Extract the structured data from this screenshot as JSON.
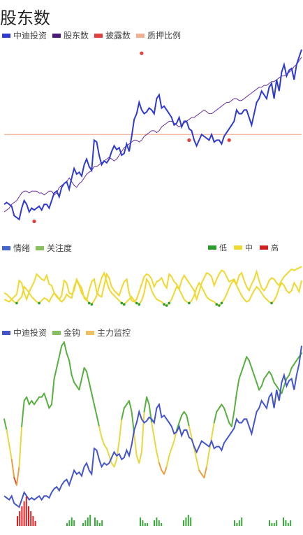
{
  "page_title": "股东数",
  "chart_data": [
    {
      "type": "line",
      "legend": [
        "中迪投资",
        "股东数",
        "披露数",
        "质押比例"
      ],
      "colors": {
        "price": "#2f3ad0",
        "holders": "#6a2fa0",
        "disclose": "#e04040",
        "pledge": "#f0b090"
      },
      "x_count": 120,
      "series": [
        {
          "name": "中迪投资",
          "values": [
            24,
            25,
            24,
            23,
            18,
            17,
            16,
            22,
            26,
            24,
            20,
            22,
            21,
            22,
            23,
            21,
            24,
            24,
            22,
            26,
            30,
            31,
            28,
            33,
            35,
            36,
            32,
            38,
            43,
            40,
            41,
            39,
            45,
            48,
            44,
            42,
            58,
            57,
            50,
            45,
            47,
            46,
            48,
            52,
            55,
            53,
            54,
            50,
            51,
            56,
            52,
            60,
            69,
            72,
            78,
            74,
            72,
            73,
            75,
            74,
            72,
            80,
            82,
            75,
            76,
            74,
            72,
            70,
            66,
            67,
            70,
            65,
            68,
            68,
            64,
            63,
            58,
            55,
            58,
            61,
            60,
            59,
            58,
            61,
            57,
            58,
            58,
            56,
            60,
            62,
            64,
            66,
            68,
            74,
            72,
            72,
            74,
            74,
            70,
            66,
            72,
            78,
            80,
            84,
            82,
            80,
            86,
            88,
            80,
            90,
            84,
            94,
            98,
            92,
            95,
            96,
            90,
            98,
            102,
            106
          ]
        },
        {
          "name": "股东数",
          "values": [
            20,
            21,
            22,
            24,
            25,
            26,
            28,
            30,
            31,
            31,
            30,
            31,
            31,
            31,
            30,
            30,
            29,
            30,
            31,
            31,
            29,
            30,
            33,
            34,
            35,
            36,
            38,
            36,
            34,
            33,
            35,
            36,
            38,
            40,
            41,
            42,
            44,
            44,
            45,
            46,
            47,
            48,
            49,
            48,
            47,
            48,
            50,
            52,
            54,
            55,
            56,
            57,
            58,
            58,
            57,
            58,
            60,
            61,
            62,
            63,
            63,
            62,
            63,
            65,
            66,
            67,
            68,
            68,
            67,
            66,
            65,
            66,
            67,
            68,
            69,
            70,
            70,
            71,
            72,
            73,
            74,
            73,
            72,
            72,
            73,
            74,
            75,
            76,
            77,
            78,
            78,
            79,
            80,
            80,
            79,
            79,
            80,
            81,
            82,
            83,
            84,
            85,
            86,
            86,
            87,
            87,
            88,
            89,
            89,
            90,
            91,
            92,
            92,
            93,
            94,
            95,
            97,
            98,
            100,
            102
          ]
        },
        {
          "name": "质押比例",
          "values": [
            61,
            61,
            61,
            61,
            61,
            61,
            61,
            61,
            61,
            61,
            61,
            61,
            61,
            61,
            61,
            61,
            61,
            61,
            61,
            61,
            61,
            61,
            61,
            61,
            61,
            61,
            61,
            61,
            61,
            61,
            61,
            61,
            61,
            61,
            61,
            61,
            61,
            61,
            61,
            61,
            61,
            61,
            61,
            61,
            61,
            61,
            61,
            61,
            61,
            61,
            61,
            61,
            61,
            61,
            61,
            61,
            61,
            61,
            61,
            61,
            61,
            61,
            61,
            61,
            61,
            61,
            61,
            61,
            61,
            61,
            61,
            61,
            61,
            61,
            61,
            61,
            61,
            61,
            61,
            61,
            61,
            61,
            61,
            61,
            61,
            61,
            61,
            61,
            61,
            61,
            61,
            61,
            61,
            61,
            61,
            61,
            61,
            61,
            61,
            61,
            61,
            61,
            61,
            61,
            61,
            61,
            61,
            61,
            61,
            61,
            61,
            61,
            61,
            61,
            61,
            61,
            61,
            61,
            61,
            61
          ]
        }
      ],
      "disclose_points": [
        {
          "x": 12,
          "y": 15
        },
        {
          "x": 55,
          "y": 104
        },
        {
          "x": 74,
          "y": 58
        },
        {
          "x": 90,
          "y": 58
        }
      ],
      "ylim": [
        10,
        110
      ]
    },
    {
      "type": "line",
      "legend": [
        "情绪",
        "关注度"
      ],
      "level_legend": [
        "低",
        "中",
        "高"
      ],
      "colors": {
        "sentiment": "#4466cc",
        "attention": "#88c060",
        "low": "#2a9d2a",
        "mid": "#f0d830",
        "high": "#d02020"
      },
      "x_count": 120,
      "series": [
        {
          "name": "情绪",
          "values": [
            30,
            28,
            26,
            30,
            34,
            38,
            60,
            56,
            40,
            30,
            42,
            50,
            58,
            70,
            66,
            62,
            60,
            68,
            54,
            52,
            40,
            34,
            30,
            36,
            60,
            56,
            40,
            38,
            44,
            62,
            54,
            48,
            32,
            28,
            44,
            58,
            62,
            42,
            36,
            34,
            52,
            70,
            64,
            50,
            44,
            40,
            36,
            48,
            58,
            62,
            40,
            28,
            26,
            30,
            42,
            54,
            66,
            70,
            68,
            62,
            50,
            58,
            60,
            64,
            54,
            48,
            70,
            66,
            58,
            54,
            46,
            60,
            68,
            62,
            56,
            50,
            44,
            30,
            42,
            56,
            64,
            72,
            70,
            66,
            52,
            62,
            70,
            76,
            74,
            66,
            58,
            60,
            62,
            54,
            68,
            72,
            60,
            50,
            44,
            54,
            62,
            74,
            60,
            48,
            44,
            50,
            60,
            64,
            62,
            56,
            52,
            60,
            66,
            70,
            74,
            78,
            76,
            78,
            80,
            82
          ]
        },
        {
          "name": "关注度",
          "values": [
            40,
            38,
            34,
            30,
            26,
            24,
            30,
            34,
            50,
            46,
            40,
            34,
            30,
            26,
            24,
            28,
            32,
            30,
            26,
            34,
            40,
            36,
            30,
            26,
            30,
            38,
            34,
            32,
            50,
            60,
            52,
            40,
            34,
            30,
            24,
            22,
            28,
            36,
            50,
            64,
            72,
            58,
            46,
            40,
            36,
            32,
            28,
            24,
            22,
            26,
            30,
            34,
            28,
            24,
            22,
            28,
            40,
            62,
            56,
            44,
            36,
            30,
            28,
            26,
            22,
            20,
            24,
            30,
            40,
            50,
            46,
            38,
            30,
            26,
            24,
            28,
            36,
            48,
            56,
            50,
            42,
            34,
            30,
            28,
            26,
            22,
            20,
            24,
            30,
            38,
            48,
            56,
            60,
            52,
            44,
            36,
            30,
            26,
            28,
            36,
            44,
            50,
            46,
            40,
            34,
            30,
            26,
            24,
            28,
            36,
            48,
            56,
            52,
            44,
            40,
            44,
            56,
            50,
            42,
            60
          ]
        }
      ],
      "ylim": [
        0,
        100
      ]
    },
    {
      "type": "line",
      "legend": [
        "中迪投资",
        "金钩",
        "主力监控"
      ],
      "colors": {
        "price": "#4455cc",
        "gold_hook": "#60b040",
        "main_force": "#f0c060"
      },
      "x_count": 120,
      "series": [
        {
          "name": "中迪投资",
          "values": [
            14,
            13,
            12,
            14,
            10,
            9,
            8,
            12,
            16,
            14,
            12,
            13,
            12,
            13,
            14,
            12,
            14,
            14,
            13,
            16,
            18,
            19,
            17,
            20,
            22,
            23,
            20,
            24,
            28,
            26,
            27,
            25,
            30,
            32,
            28,
            26,
            40,
            39,
            34,
            30,
            32,
            31,
            32,
            35,
            38,
            36,
            37,
            34,
            35,
            39,
            36,
            42,
            50,
            54,
            60,
            56,
            54,
            55,
            57,
            56,
            54,
            62,
            64,
            57,
            58,
            56,
            54,
            52,
            48,
            49,
            52,
            47,
            50,
            50,
            46,
            45,
            41,
            38,
            41,
            44,
            43,
            42,
            41,
            44,
            40,
            41,
            41,
            39,
            43,
            45,
            47,
            49,
            51,
            56,
            54,
            54,
            56,
            56,
            52,
            48,
            54,
            60,
            62,
            66,
            64,
            62,
            68,
            70,
            62,
            72,
            66,
            76,
            80,
            74,
            77,
            78,
            72,
            80,
            86,
            96
          ]
        },
        {
          "name": "金钩",
          "values": [
            56,
            50,
            42,
            34,
            24,
            20,
            30,
            52,
            66,
            68,
            64,
            66,
            64,
            66,
            68,
            68,
            70,
            66,
            62,
            64,
            78,
            84,
            90,
            96,
            98,
            92,
            88,
            80,
            76,
            74,
            72,
            78,
            84,
            82,
            76,
            70,
            64,
            58,
            52,
            46,
            42,
            40,
            36,
            32,
            30,
            34,
            44,
            56,
            62,
            64,
            66,
            60,
            48,
            36,
            32,
            38,
            60,
            68,
            64,
            54,
            46,
            38,
            32,
            28,
            26,
            30,
            36,
            40,
            44,
            50,
            54,
            58,
            60,
            58,
            52,
            46,
            40,
            34,
            28,
            26,
            24,
            30,
            38,
            46,
            54,
            60,
            62,
            64,
            62,
            58,
            54,
            52,
            60,
            70,
            78,
            82,
            86,
            90,
            88,
            84,
            80,
            76,
            72,
            74,
            78,
            80,
            82,
            80,
            76,
            74,
            72,
            70,
            74,
            78,
            80,
            84,
            86,
            88,
            90,
            92
          ]
        }
      ],
      "volume_red": [
        2,
        3,
        4,
        5,
        6,
        4,
        3,
        2,
        1
      ],
      "volume_green": [
        1,
        2,
        3,
        2,
        1,
        2,
        3,
        4,
        3,
        2,
        1,
        2,
        3,
        2,
        1
      ],
      "ylim": [
        0,
        100
      ]
    }
  ]
}
